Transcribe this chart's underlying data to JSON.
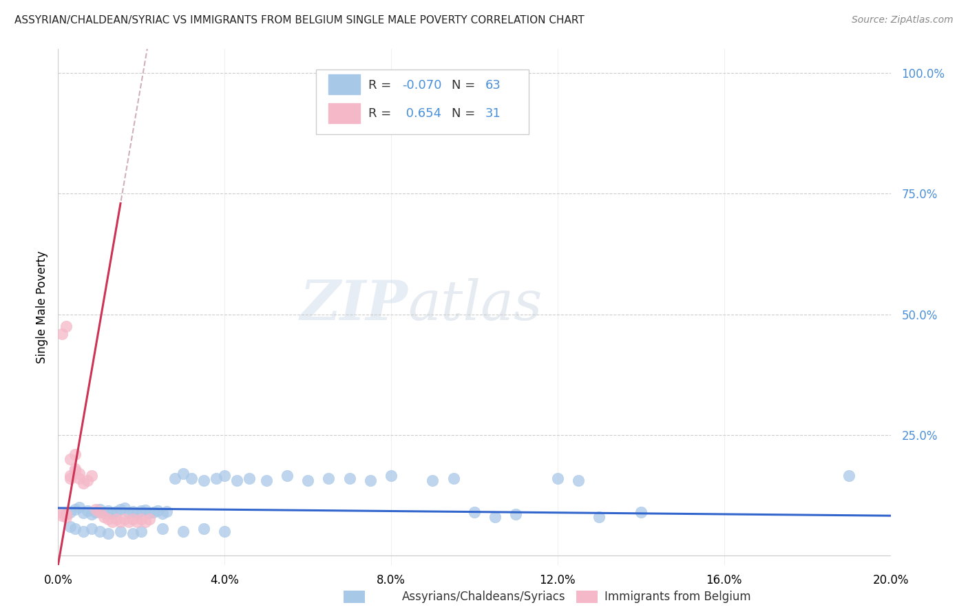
{
  "title": "ASSYRIAN/CHALDEAN/SYRIAC VS IMMIGRANTS FROM BELGIUM SINGLE MALE POVERTY CORRELATION CHART",
  "source": "Source: ZipAtlas.com",
  "ylabel": "Single Male Poverty",
  "ytick_labels": [
    "",
    "25.0%",
    "50.0%",
    "75.0%",
    "100.0%"
  ],
  "ytick_positions": [
    0.0,
    0.25,
    0.5,
    0.75,
    1.0
  ],
  "xlim": [
    0.0,
    0.2
  ],
  "ylim": [
    -0.02,
    1.05
  ],
  "xtick_positions": [
    0.0,
    0.04,
    0.08,
    0.12,
    0.16,
    0.2
  ],
  "xtick_labels": [
    "0.0%",
    "4.0%",
    "8.0%",
    "12.0%",
    "16.0%",
    "20.0%"
  ],
  "legend_entry1_label": "Assyrians/Chaldeans/Syriacs",
  "legend_entry2_label": "Immigrants from Belgium",
  "color_blue": "#a8c8e8",
  "color_pink": "#f5b8c8",
  "trendline1_color": "#3366cc",
  "trendline2_color": "#cc3355",
  "trendline2_dashed_color": "#d0b0b8",
  "watermark_zip": "ZIP",
  "watermark_atlas": "atlas",
  "blue_scatter_x": [
    0.002,
    0.003,
    0.004,
    0.005,
    0.006,
    0.007,
    0.008,
    0.009,
    0.01,
    0.011,
    0.012,
    0.013,
    0.014,
    0.015,
    0.016,
    0.017,
    0.018,
    0.019,
    0.02,
    0.021,
    0.022,
    0.023,
    0.024,
    0.025,
    0.026,
    0.028,
    0.03,
    0.032,
    0.035,
    0.038,
    0.04,
    0.043,
    0.046,
    0.05,
    0.055,
    0.06,
    0.065,
    0.07,
    0.075,
    0.08,
    0.09,
    0.095,
    0.1,
    0.105,
    0.11,
    0.12,
    0.125,
    0.13,
    0.14,
    0.19,
    0.003,
    0.004,
    0.006,
    0.008,
    0.01,
    0.012,
    0.015,
    0.018,
    0.02,
    0.025,
    0.03,
    0.035,
    0.04
  ],
  "blue_scatter_y": [
    0.085,
    0.09,
    0.095,
    0.1,
    0.088,
    0.092,
    0.085,
    0.09,
    0.095,
    0.088,
    0.093,
    0.087,
    0.091,
    0.095,
    0.098,
    0.088,
    0.091,
    0.087,
    0.092,
    0.094,
    0.088,
    0.09,
    0.093,
    0.087,
    0.091,
    0.16,
    0.17,
    0.16,
    0.155,
    0.16,
    0.165,
    0.155,
    0.16,
    0.155,
    0.165,
    0.155,
    0.16,
    0.16,
    0.155,
    0.165,
    0.155,
    0.16,
    0.09,
    0.08,
    0.085,
    0.16,
    0.155,
    0.08,
    0.09,
    0.165,
    0.06,
    0.055,
    0.05,
    0.055,
    0.05,
    0.045,
    0.05,
    0.045,
    0.05,
    0.055,
    0.05,
    0.055,
    0.05
  ],
  "pink_scatter_x": [
    0.001,
    0.001,
    0.002,
    0.002,
    0.003,
    0.003,
    0.004,
    0.004,
    0.005,
    0.005,
    0.006,
    0.007,
    0.008,
    0.009,
    0.01,
    0.011,
    0.012,
    0.013,
    0.014,
    0.015,
    0.016,
    0.017,
    0.018,
    0.019,
    0.02,
    0.021,
    0.022,
    0.001,
    0.002,
    0.003,
    0.004
  ],
  "pink_scatter_y": [
    0.082,
    0.088,
    0.08,
    0.085,
    0.16,
    0.165,
    0.175,
    0.18,
    0.16,
    0.17,
    0.15,
    0.155,
    0.165,
    0.095,
    0.09,
    0.08,
    0.075,
    0.07,
    0.075,
    0.07,
    0.075,
    0.07,
    0.075,
    0.07,
    0.075,
    0.07,
    0.075,
    0.46,
    0.475,
    0.2,
    0.21
  ]
}
